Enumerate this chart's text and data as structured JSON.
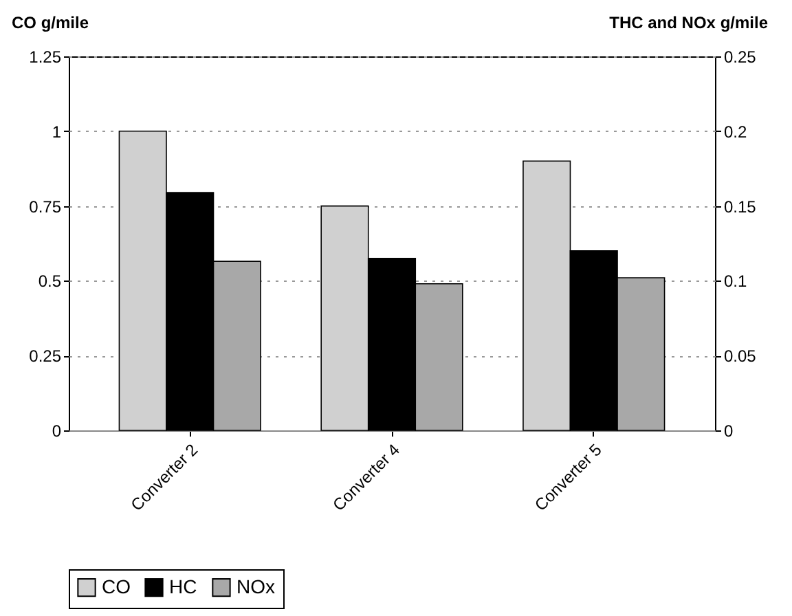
{
  "chart_data": {
    "type": "bar",
    "ylabel": "CO g/mile",
    "y2label": "THC and NOx g/mile",
    "categories": [
      "Converter 2",
      "Converter 4",
      "Converter 5"
    ],
    "series": [
      {
        "name": "CO",
        "color": "#d0d0d0",
        "values": [
          1.0,
          0.75,
          0.9
        ]
      },
      {
        "name": "HC",
        "color": "#000000",
        "values": [
          0.159,
          0.115,
          0.12
        ],
        "axis": "y2"
      },
      {
        "name": "NOx",
        "color": "#a8a8a8",
        "values": [
          0.113,
          0.098,
          0.102
        ],
        "axis": "y2"
      }
    ],
    "ylim": [
      0,
      1.25
    ],
    "yticks": [
      0,
      0.25,
      0.5,
      0.75,
      1,
      1.25
    ],
    "y2lim": [
      0,
      0.25
    ],
    "y2ticks": [
      0,
      0.05,
      0.1,
      0.15,
      0.2,
      0.25
    ],
    "grid": "y",
    "legend": "bottom"
  }
}
